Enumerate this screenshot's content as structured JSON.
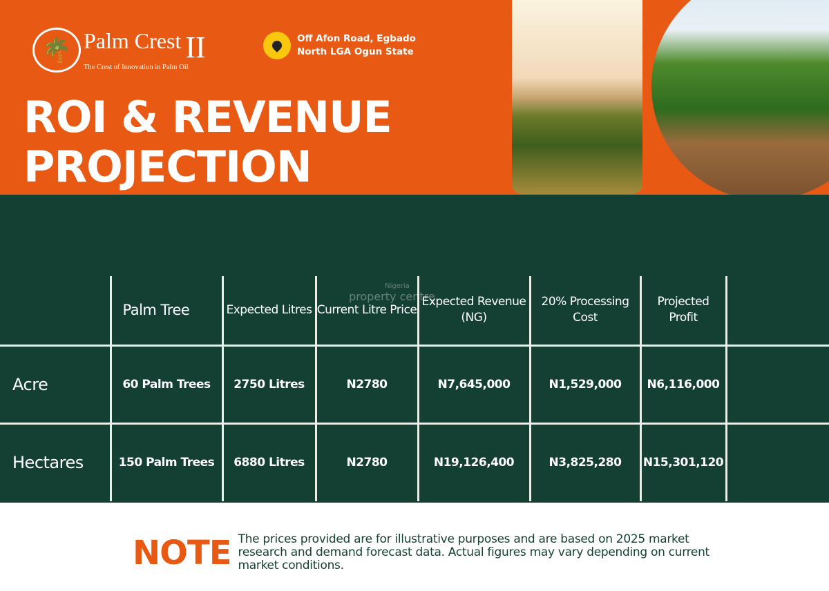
{
  "header": {
    "brand_name": "Palm Crest",
    "brand_numeral": "II",
    "tagline": "The Crest of Innovation in Palm Oil",
    "location_line1": "Off Afon Road, Egbado",
    "location_line2": "North LGA Ogun State",
    "title_line1": "ROI & REVENUE",
    "title_line2": "PROJECTION"
  },
  "colors": {
    "orange": "#e85a14",
    "green": "#143f33",
    "pin": "#f9c80e"
  },
  "table": {
    "columns": [
      "",
      "Palm Tree",
      "Expected Litres",
      "Current Litre Price",
      "Expected Revenue (NG)",
      "20% Processing Cost",
      "Projected Profit",
      ""
    ],
    "rows": [
      {
        "label": "Acre",
        "palm_tree": "60 Palm Trees",
        "litres": "2750 Litres",
        "price": "N2780",
        "revenue": "N7,645,000",
        "cost": "N1,529,000",
        "profit": "N6,116,000"
      },
      {
        "label": "Hectares",
        "palm_tree": "150 Palm Trees",
        "litres": "6880 Litres",
        "price": "N2780",
        "revenue": "N19,126,400",
        "cost": "N3,825,280",
        "profit": "N15,301,120"
      }
    ]
  },
  "watermark": {
    "small": "Nigeria",
    "text": "property centre"
  },
  "note": {
    "label": "NOTE",
    "text": "The prices provided are for illustrative purposes and are based on 2025 market research and demand forecast data. Actual figures may vary depending on current market conditions."
  }
}
